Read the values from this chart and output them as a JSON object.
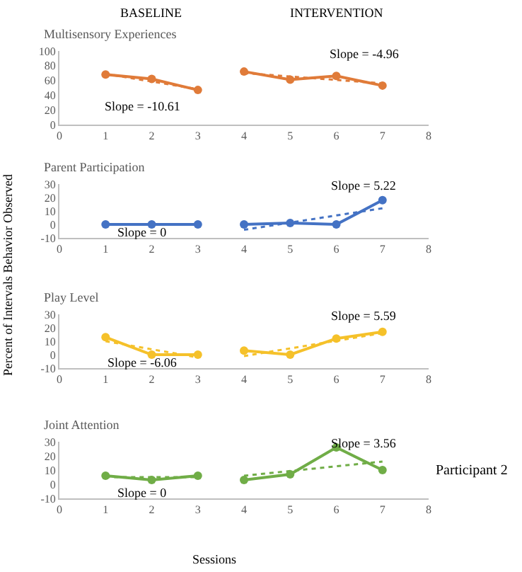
{
  "chart_data": [
    {
      "type": "line",
      "title": "Multisensory Experiences",
      "xlim": [
        0,
        8
      ],
      "xticks": [
        0,
        1,
        2,
        3,
        4,
        5,
        6,
        7,
        8
      ],
      "ylim": [
        0,
        100
      ],
      "yticks": [
        0,
        20,
        40,
        60,
        80,
        100
      ],
      "marker": "circle",
      "annotations": [
        "BASELINE",
        "INTERVENTION",
        "Slope = -10.61",
        "Slope = -4.96"
      ],
      "series": [
        {
          "color": "#e07b39",
          "x": [
            1,
            2,
            3
          ],
          "values": [
            68,
            62,
            47
          ]
        },
        {
          "color": "#e07b39",
          "x": [
            4,
            5,
            6,
            7
          ],
          "values": [
            72,
            61,
            66,
            53
          ]
        },
        {
          "color": "#e07b39",
          "x": [
            1,
            3
          ],
          "values": [
            69,
            48
          ],
          "marker": "none",
          "line_style": "dotted"
        },
        {
          "color": "#e07b39",
          "x": [
            4,
            7
          ],
          "values": [
            70,
            56
          ],
          "marker": "none",
          "line_style": "dotted"
        }
      ]
    },
    {
      "type": "line",
      "title": "Parent Participation",
      "ylabel": "Percent of Intervals Behavior Observed",
      "xlim": [
        0,
        8
      ],
      "xticks": [
        0,
        1,
        2,
        3,
        4,
        5,
        6,
        7,
        8
      ],
      "ylim": [
        -10,
        30
      ],
      "yticks": [
        -10,
        0,
        10,
        20,
        30
      ],
      "marker": "circle",
      "annotations": [
        "Slope = 0",
        "Slope = 5.22"
      ],
      "series": [
        {
          "color": "#4472c4",
          "x": [
            1,
            2,
            3
          ],
          "values": [
            0,
            0,
            0
          ]
        },
        {
          "color": "#4472c4",
          "x": [
            4,
            5,
            6,
            7
          ],
          "values": [
            0,
            1,
            0,
            18
          ]
        },
        {
          "color": "#4472c4",
          "x": [
            4,
            7
          ],
          "values": [
            -4,
            12
          ],
          "marker": "none",
          "line_style": "dotted"
        }
      ]
    },
    {
      "type": "line",
      "title": "Play Level",
      "xlim": [
        0,
        8
      ],
      "xticks": [
        0,
        1,
        2,
        3,
        4,
        5,
        6,
        7,
        8
      ],
      "ylim": [
        -10,
        30
      ],
      "yticks": [
        -10,
        0,
        10,
        20,
        30
      ],
      "marker": "circle",
      "annotations": [
        "Slope = -6.06",
        "Slope = 5.59"
      ],
      "series": [
        {
          "color": "#f5c12a",
          "x": [
            1,
            2,
            3
          ],
          "values": [
            13,
            0,
            0
          ]
        },
        {
          "color": "#f5c12a",
          "x": [
            4,
            5,
            6,
            7
          ],
          "values": [
            3,
            0,
            12,
            17
          ]
        },
        {
          "color": "#f5c12a",
          "x": [
            1,
            3
          ],
          "values": [
            10,
            -2
          ],
          "marker": "none",
          "line_style": "dotted"
        },
        {
          "color": "#f5c12a",
          "x": [
            4,
            7
          ],
          "values": [
            -1,
            16
          ],
          "marker": "none",
          "line_style": "dotted"
        }
      ]
    },
    {
      "type": "line",
      "title": "Joint Attention",
      "xlabel": "Sessions",
      "xlim": [
        0,
        8
      ],
      "xticks": [
        0,
        1,
        2,
        3,
        4,
        5,
        6,
        7,
        8
      ],
      "ylim": [
        -10,
        30
      ],
      "yticks": [
        -10,
        0,
        10,
        20,
        30
      ],
      "marker": "circle",
      "annotations": [
        "Slope = 0",
        "Slope = 3.56",
        "Participant 2"
      ],
      "series": [
        {
          "color": "#70ad47",
          "x": [
            1,
            2,
            3
          ],
          "values": [
            6,
            3,
            6
          ]
        },
        {
          "color": "#70ad47",
          "x": [
            4,
            5,
            6,
            7
          ],
          "values": [
            3,
            7,
            26,
            10
          ]
        },
        {
          "color": "#70ad47",
          "x": [
            1,
            3
          ],
          "values": [
            5,
            5
          ],
          "marker": "none",
          "line_style": "dotted"
        },
        {
          "color": "#70ad47",
          "x": [
            4,
            7
          ],
          "values": [
            6,
            16
          ],
          "marker": "none",
          "line_style": "dotted"
        }
      ]
    }
  ]
}
